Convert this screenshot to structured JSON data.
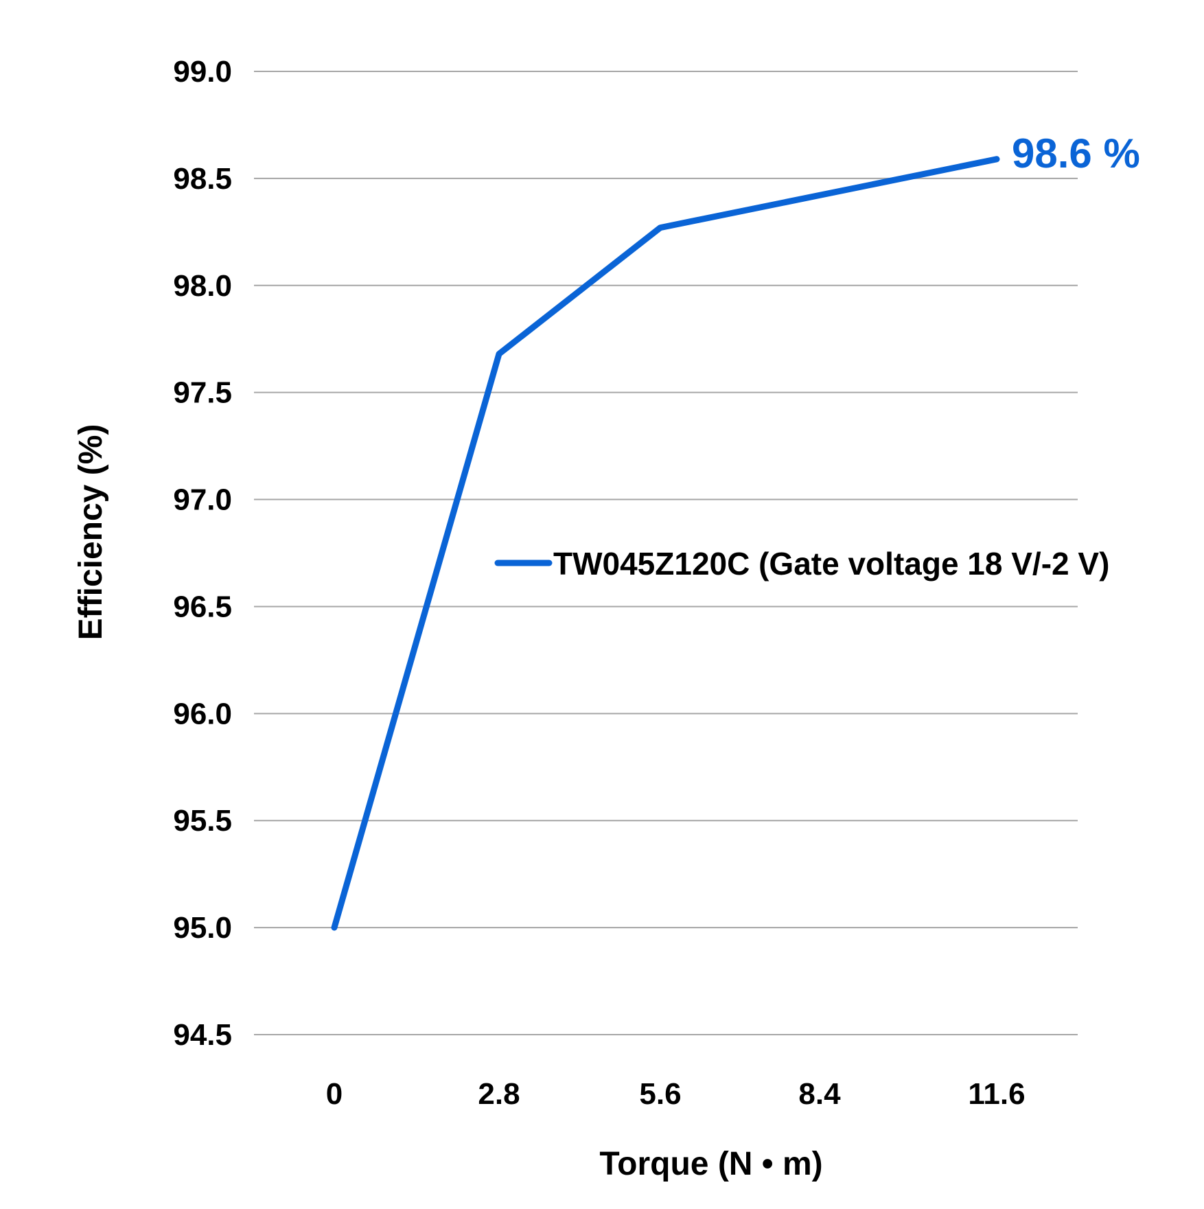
{
  "chart_data": {
    "type": "line",
    "categories": [
      "0",
      "2.8",
      "5.6",
      "8.4",
      "11.6"
    ],
    "series": [
      {
        "name": "TW045Z120C (Gate voltage 18 V/-2 V)",
        "x": [
          0,
          2.8,
          5.6,
          11.6
        ],
        "values": [
          95.0,
          97.68,
          98.27,
          98.59
        ],
        "color": "#0a64d6"
      }
    ],
    "end_label": "98.6 %",
    "xlabel": "Torque (N • m)",
    "ylabel": "Efficiency (%)",
    "ylim": [
      94.5,
      99.0
    ],
    "yticks": [
      "94.5",
      "95.0",
      "95.5",
      "96.0",
      "96.5",
      "97.0",
      "97.5",
      "98.0",
      "98.5",
      "99.0"
    ],
    "grid": true,
    "legend": "center-right"
  }
}
